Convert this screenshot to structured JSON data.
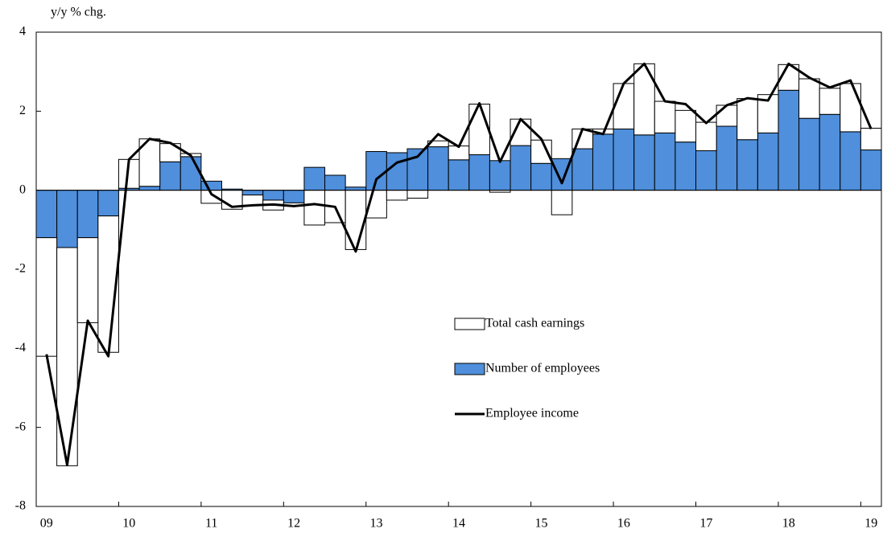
{
  "chart_data": {
    "type": "bar",
    "y_label": "y/y % chg.",
    "categories": [
      "09",
      null,
      null,
      null,
      "10",
      null,
      null,
      null,
      "11",
      null,
      null,
      null,
      "12",
      null,
      null,
      null,
      "13",
      null,
      null,
      null,
      "14",
      null,
      null,
      null,
      "15",
      null,
      null,
      null,
      "16",
      null,
      null,
      null,
      "17",
      null,
      null,
      null,
      "18",
      null,
      null,
      null,
      "19"
    ],
    "series": [
      {
        "name": "Total cash earnings",
        "type": "bar",
        "color": "#ffffff",
        "values": [
          -3.0,
          -5.52,
          -2.15,
          -3.45,
          0.73,
          1.2,
          0.46,
          0.08,
          -0.33,
          -0.48,
          -0.26,
          -0.25,
          -0.08,
          -0.88,
          -0.82,
          -1.5,
          -0.7,
          -0.25,
          -0.2,
          0.15,
          0.35,
          1.28,
          -0.05,
          0.67,
          0.59,
          -0.62,
          0.5,
          0.13,
          1.15,
          1.8,
          0.8,
          0.8,
          0.72,
          0.53,
          1.04,
          0.97,
          0.65,
          1.0,
          0.66,
          1.22,
          0.55
        ]
      },
      {
        "name": "Number of employees",
        "type": "bar",
        "color": "#4f8fdc",
        "values": [
          -1.2,
          -1.45,
          -1.2,
          -0.65,
          0.05,
          0.1,
          0.72,
          0.85,
          0.23,
          0.03,
          -0.12,
          -0.25,
          -0.32,
          0.58,
          0.38,
          0.08,
          0.98,
          0.95,
          1.05,
          1.1,
          0.77,
          0.9,
          0.75,
          1.13,
          0.68,
          0.8,
          1.05,
          1.42,
          1.55,
          1.4,
          1.45,
          1.22,
          1.0,
          1.62,
          1.28,
          1.45,
          2.53,
          1.82,
          1.92,
          1.48,
          1.02
        ]
      },
      {
        "name": "Employee income",
        "type": "line",
        "color": "#000000",
        "values": [
          -4.15,
          -6.95,
          -3.3,
          -4.2,
          0.78,
          1.3,
          1.2,
          0.88,
          -0.1,
          -0.42,
          -0.38,
          -0.36,
          -0.4,
          -0.35,
          -0.42,
          -1.55,
          0.28,
          0.7,
          0.85,
          1.42,
          1.1,
          2.2,
          0.72,
          1.8,
          1.3,
          0.18,
          1.55,
          1.42,
          2.7,
          3.2,
          2.25,
          2.18,
          1.7,
          2.15,
          2.33,
          2.27,
          3.2,
          2.85,
          2.6,
          2.78,
          1.55
        ]
      }
    ],
    "ylim": [
      -8,
      4
    ],
    "yticks": [
      -8,
      -6,
      -4,
      -2,
      0,
      2,
      4
    ],
    "grid": false
  }
}
